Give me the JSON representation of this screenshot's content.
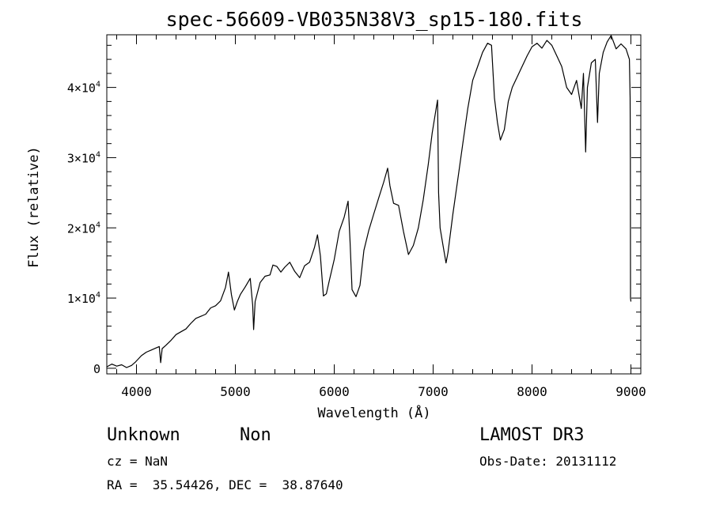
{
  "chart_data": {
    "type": "line",
    "title": "spec-56609-VB035N38V3_sp15-180.fits",
    "xlabel": "Wavelength (Å)",
    "ylabel": "Flux (relative)",
    "xlim": [
      3700,
      9100
    ],
    "ylim": [
      -800,
      47500
    ],
    "x_ticks": [
      {
        "value": 4000,
        "label": "4000"
      },
      {
        "value": 5000,
        "label": "5000"
      },
      {
        "value": 6000,
        "label": "6000"
      },
      {
        "value": 7000,
        "label": "7000"
      },
      {
        "value": 8000,
        "label": "8000"
      },
      {
        "value": 9000,
        "label": "9000"
      }
    ],
    "y_ticks": [
      {
        "value": 0,
        "label": "0",
        "exp": ""
      },
      {
        "value": 10000,
        "label": "1×10",
        "exp": "4"
      },
      {
        "value": 20000,
        "label": "2×10",
        "exp": "4"
      },
      {
        "value": 30000,
        "label": "3×10",
        "exp": "4"
      },
      {
        "value": 40000,
        "label": "4×10",
        "exp": "4"
      }
    ],
    "series": [
      {
        "name": "spectrum",
        "points": [
          [
            3700,
            200
          ],
          [
            3750,
            600
          ],
          [
            3800,
            300
          ],
          [
            3850,
            500
          ],
          [
            3900,
            100
          ],
          [
            3950,
            400
          ],
          [
            3990,
            900
          ],
          [
            4050,
            1800
          ],
          [
            4100,
            2300
          ],
          [
            4150,
            2600
          ],
          [
            4200,
            2900
          ],
          [
            4230,
            3100
          ],
          [
            4245,
            800
          ],
          [
            4260,
            2800
          ],
          [
            4300,
            3300
          ],
          [
            4350,
            4000
          ],
          [
            4400,
            4800
          ],
          [
            4450,
            5200
          ],
          [
            4500,
            5600
          ],
          [
            4550,
            6400
          ],
          [
            4600,
            7100
          ],
          [
            4650,
            7400
          ],
          [
            4700,
            7700
          ],
          [
            4750,
            8600
          ],
          [
            4800,
            8900
          ],
          [
            4850,
            9600
          ],
          [
            4900,
            11500
          ],
          [
            4930,
            13700
          ],
          [
            4960,
            10500
          ],
          [
            4990,
            8300
          ],
          [
            5020,
            9500
          ],
          [
            5050,
            10500
          ],
          [
            5100,
            11600
          ],
          [
            5150,
            12800
          ],
          [
            5175,
            9000
          ],
          [
            5185,
            5500
          ],
          [
            5200,
            9500
          ],
          [
            5250,
            12200
          ],
          [
            5300,
            13100
          ],
          [
            5350,
            13300
          ],
          [
            5380,
            14700
          ],
          [
            5420,
            14500
          ],
          [
            5460,
            13700
          ],
          [
            5500,
            14400
          ],
          [
            5550,
            15100
          ],
          [
            5600,
            13800
          ],
          [
            5650,
            12900
          ],
          [
            5700,
            14600
          ],
          [
            5750,
            15100
          ],
          [
            5800,
            17200
          ],
          [
            5830,
            19000
          ],
          [
            5860,
            16000
          ],
          [
            5890,
            10300
          ],
          [
            5920,
            10600
          ],
          [
            5950,
            12500
          ],
          [
            6000,
            15500
          ],
          [
            6050,
            19500
          ],
          [
            6100,
            21500
          ],
          [
            6140,
            23800
          ],
          [
            6160,
            18000
          ],
          [
            6180,
            11200
          ],
          [
            6220,
            10200
          ],
          [
            6260,
            11800
          ],
          [
            6300,
            16800
          ],
          [
            6350,
            19700
          ],
          [
            6400,
            22000
          ],
          [
            6450,
            24300
          ],
          [
            6500,
            26500
          ],
          [
            6540,
            28500
          ],
          [
            6563,
            26000
          ],
          [
            6600,
            23500
          ],
          [
            6650,
            23200
          ],
          [
            6700,
            19500
          ],
          [
            6750,
            16200
          ],
          [
            6800,
            17500
          ],
          [
            6850,
            20000
          ],
          [
            6900,
            24000
          ],
          [
            6950,
            29000
          ],
          [
            6990,
            33500
          ],
          [
            7030,
            37000
          ],
          [
            7045,
            38200
          ],
          [
            7055,
            25000
          ],
          [
            7070,
            20000
          ],
          [
            7100,
            17500
          ],
          [
            7130,
            15000
          ],
          [
            7150,
            16500
          ],
          [
            7200,
            22000
          ],
          [
            7250,
            27000
          ],
          [
            7300,
            32000
          ],
          [
            7350,
            37000
          ],
          [
            7400,
            41000
          ],
          [
            7450,
            43000
          ],
          [
            7500,
            45000
          ],
          [
            7550,
            46300
          ],
          [
            7590,
            46000
          ],
          [
            7620,
            38500
          ],
          [
            7650,
            35000
          ],
          [
            7680,
            32500
          ],
          [
            7720,
            34000
          ],
          [
            7760,
            38000
          ],
          [
            7800,
            40000
          ],
          [
            7850,
            41500
          ],
          [
            7900,
            43000
          ],
          [
            7950,
            44500
          ],
          [
            8000,
            45800
          ],
          [
            8050,
            46300
          ],
          [
            8100,
            45600
          ],
          [
            8150,
            46700
          ],
          [
            8200,
            46000
          ],
          [
            8250,
            44500
          ],
          [
            8300,
            43000
          ],
          [
            8350,
            40000
          ],
          [
            8400,
            39000
          ],
          [
            8450,
            41000
          ],
          [
            8498,
            37000
          ],
          [
            8520,
            42000
          ],
          [
            8542,
            30800
          ],
          [
            8560,
            40000
          ],
          [
            8600,
            43500
          ],
          [
            8640,
            44000
          ],
          [
            8662,
            35000
          ],
          [
            8680,
            42000
          ],
          [
            8720,
            45000
          ],
          [
            8760,
            46500
          ],
          [
            8800,
            47400
          ],
          [
            8850,
            45500
          ],
          [
            8900,
            46200
          ],
          [
            8950,
            45500
          ],
          [
            8985,
            44000
          ],
          [
            8992,
            38500
          ],
          [
            8994,
            30000
          ],
          [
            8996,
            10000
          ],
          [
            9000,
            9500
          ]
        ]
      }
    ]
  },
  "info": {
    "object_class": "Unknown",
    "subclass": "Non",
    "survey": "LAMOST DR3",
    "redshift": "cz = NaN",
    "obs_date": "Obs-Date: 20131112",
    "coords": "RA =  35.54426, DEC =  38.87640"
  }
}
